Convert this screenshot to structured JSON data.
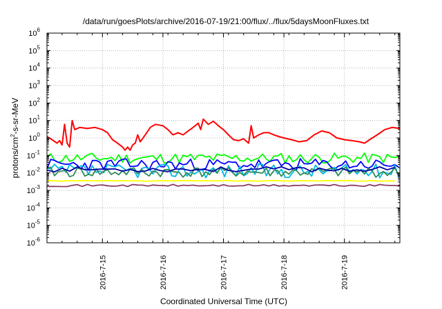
{
  "chart_data": {
    "type": "line",
    "title": "/data/run/goesPlots/archive/2016-07-19/21:00/flux/../flux/5daysMoonFluxes.txt",
    "xlabel": "Coordinated Universal Time (UTC)",
    "ylabel": "protons/cm2-s-sr-MeV",
    "ylabel_parts": [
      "protons/cm",
      "2",
      "-s-sr-MeV"
    ],
    "y_scale": "log",
    "ylim": [
      1e-06,
      1000000.0
    ],
    "y_ticks": [
      {
        "base": "10",
        "exp": "-6"
      },
      {
        "base": "10",
        "exp": "-5"
      },
      {
        "base": "10",
        "exp": "-4"
      },
      {
        "base": "10",
        "exp": "-3"
      },
      {
        "base": "10",
        "exp": "-2"
      },
      {
        "base": "10",
        "exp": "-1"
      },
      {
        "base": "10",
        "exp": "0"
      },
      {
        "base": "10",
        "exp": "1"
      },
      {
        "base": "10",
        "exp": "2"
      },
      {
        "base": "10",
        "exp": "3"
      },
      {
        "base": "10",
        "exp": "4"
      },
      {
        "base": "10",
        "exp": "5"
      },
      {
        "base": "10",
        "exp": "6"
      }
    ],
    "xlim": [
      "2016-07-14T02:00",
      "2016-07-19T22:00"
    ],
    "x_ticks": [
      "2016-7-15",
      "2016-7-16",
      "2016-7-17",
      "2016-7-18",
      "2016-7-19"
    ],
    "grid": true,
    "series": [
      {
        "color": "#ff0000",
        "points": [
          [
            "2016-07-14T02:00",
            1.2
          ],
          [
            "2016-07-14T04:00",
            0.8
          ],
          [
            "2016-07-14T06:00",
            0.5
          ],
          [
            "2016-07-14T07:00",
            0.7
          ],
          [
            "2016-07-14T08:00",
            0.4
          ],
          [
            "2016-07-14T09:00",
            6
          ],
          [
            "2016-07-14T10:00",
            0.5
          ],
          [
            "2016-07-14T11:00",
            0.3
          ],
          [
            "2016-07-14T12:00",
            10
          ],
          [
            "2016-07-14T13:00",
            3
          ],
          [
            "2016-07-14T15:00",
            4
          ],
          [
            "2016-07-14T18:00",
            3.5
          ],
          [
            "2016-07-14T21:00",
            4
          ],
          [
            "2016-07-15T00:00",
            3
          ],
          [
            "2016-07-15T02:00",
            2
          ],
          [
            "2016-07-15T04:00",
            0.8
          ],
          [
            "2016-07-15T06:00",
            0.5
          ],
          [
            "2016-07-15T08:00",
            0.3
          ],
          [
            "2016-07-15T09:00",
            0.2
          ],
          [
            "2016-07-15T10:00",
            0.3
          ],
          [
            "2016-07-15T11:00",
            0.2
          ],
          [
            "2016-07-15T12:00",
            0.4
          ],
          [
            "2016-07-15T13:00",
            0.5
          ],
          [
            "2016-07-15T14:00",
            1.5
          ],
          [
            "2016-07-15T15:00",
            0.6
          ],
          [
            "2016-07-15T17:00",
            1.5
          ],
          [
            "2016-07-15T19:00",
            4
          ],
          [
            "2016-07-15T21:00",
            6
          ],
          [
            "2016-07-16T00:00",
            5
          ],
          [
            "2016-07-16T02:00",
            3
          ],
          [
            "2016-07-16T04:00",
            1.5
          ],
          [
            "2016-07-16T06:00",
            2
          ],
          [
            "2016-07-16T08:00",
            1.5
          ],
          [
            "2016-07-16T10:00",
            2.5
          ],
          [
            "2016-07-16T12:00",
            4
          ],
          [
            "2016-07-16T14:00",
            7
          ],
          [
            "2016-07-16T15:00",
            3
          ],
          [
            "2016-07-16T16:00",
            12
          ],
          [
            "2016-07-16T18:00",
            6
          ],
          [
            "2016-07-16T20:00",
            9
          ],
          [
            "2016-07-16T22:00",
            5
          ],
          [
            "2016-07-17T00:00",
            3
          ],
          [
            "2016-07-17T02:00",
            1.5
          ],
          [
            "2016-07-17T04:00",
            0.8
          ],
          [
            "2016-07-17T06:00",
            0.7
          ],
          [
            "2016-07-17T08:00",
            0.9
          ],
          [
            "2016-07-17T10:00",
            0.5
          ],
          [
            "2016-07-17T11:00",
            5
          ],
          [
            "2016-07-17T12:00",
            1
          ],
          [
            "2016-07-17T14:00",
            1.5
          ],
          [
            "2016-07-17T16:00",
            2
          ],
          [
            "2016-07-17T18:00",
            2
          ],
          [
            "2016-07-17T20:00",
            1.5
          ],
          [
            "2016-07-17T22:00",
            1.2
          ],
          [
            "2016-07-18T00:00",
            1
          ],
          [
            "2016-07-18T03:00",
            0.8
          ],
          [
            "2016-07-18T06:00",
            0.6
          ],
          [
            "2016-07-18T09:00",
            0.7
          ],
          [
            "2016-07-18T12:00",
            1.5
          ],
          [
            "2016-07-18T15:00",
            2.5
          ],
          [
            "2016-07-18T18:00",
            2
          ],
          [
            "2016-07-18T21:00",
            1
          ],
          [
            "2016-07-19T00:00",
            0.8
          ],
          [
            "2016-07-19T03:00",
            0.7
          ],
          [
            "2016-07-19T06:00",
            0.6
          ],
          [
            "2016-07-19T08:00",
            0.5
          ],
          [
            "2016-07-19T10:00",
            0.8
          ],
          [
            "2016-07-19T13:00",
            1.5
          ],
          [
            "2016-07-19T16:00",
            3
          ],
          [
            "2016-07-19T19:00",
            4
          ],
          [
            "2016-07-19T22:00",
            3.5
          ]
        ]
      },
      {
        "color": "#00ff00",
        "level": 0.07,
        "spread": 2.0,
        "seed": 11,
        "period": 1.5
      },
      {
        "color": "#0000ff",
        "level": 0.03,
        "spread": 2.2,
        "seed": 23,
        "period": 1.5
      },
      {
        "color": "#00b8e6",
        "level": 0.013,
        "spread": 2.5,
        "seed": 37,
        "period": 1.5
      },
      {
        "color": "#2e8b57",
        "level": 0.011,
        "spread": 2.0,
        "seed": 41,
        "period": 1.5
      },
      {
        "color": "#0000a0",
        "level": 0.016,
        "spread": 1.4,
        "seed": 53,
        "period": 3
      },
      {
        "color": "#ffff00",
        "level": 0.0035,
        "spread": 1.05,
        "seed": 61,
        "period": 3
      },
      {
        "color": "#8b3a62",
        "level": 0.0019,
        "spread": 1.15,
        "seed": 71,
        "period": 2
      }
    ]
  }
}
